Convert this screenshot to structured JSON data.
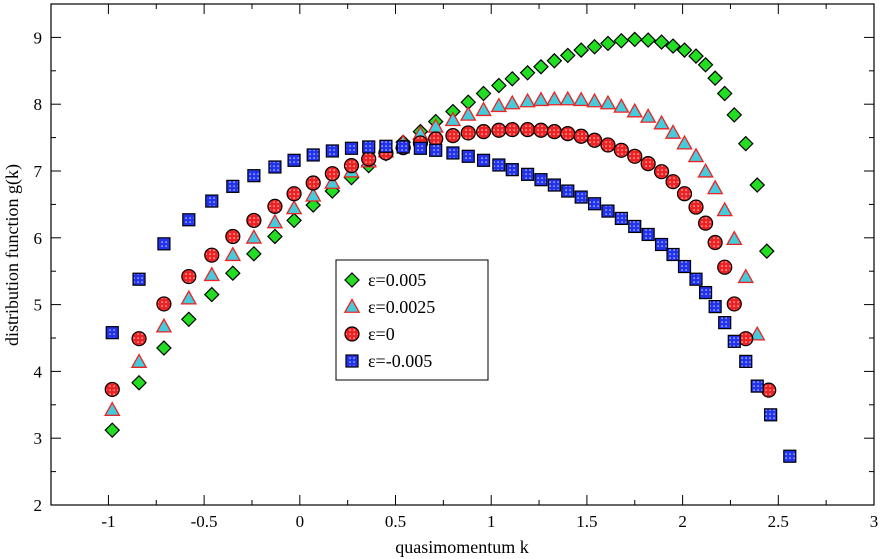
{
  "chart_data": {
    "type": "scatter",
    "title": "",
    "xlabel": "quasimomentum k",
    "ylabel": "distribution function g(k)",
    "xlim": [
      -1.3,
      3.0
    ],
    "ylim": [
      2,
      9.5
    ],
    "xticks": [
      -1,
      -0.5,
      0,
      0.5,
      1,
      1.5,
      2,
      2.5,
      3
    ],
    "xtick_labels": [
      "-1",
      "-0.5",
      "0",
      "0.5",
      "1",
      "1.5",
      "2",
      "2.5",
      "3"
    ],
    "yticks": [
      2,
      3,
      4,
      5,
      6,
      7,
      8,
      9
    ],
    "ytick_labels": [
      "2",
      "3",
      "4",
      "5",
      "6",
      "7",
      "8",
      "9"
    ],
    "grid": false,
    "legend_position": "center",
    "series": [
      {
        "name": "ε=0.005",
        "marker": "diamond",
        "color": "#22dd22",
        "points": [
          [
            -0.98,
            3.12
          ],
          [
            -0.84,
            3.83
          ],
          [
            -0.71,
            4.35
          ],
          [
            -0.58,
            4.78
          ],
          [
            -0.46,
            5.15
          ],
          [
            -0.35,
            5.47
          ],
          [
            -0.24,
            5.76
          ],
          [
            -0.13,
            6.02
          ],
          [
            -0.03,
            6.26
          ],
          [
            0.07,
            6.49
          ],
          [
            0.17,
            6.7
          ],
          [
            0.27,
            6.9
          ],
          [
            0.36,
            7.08
          ],
          [
            0.45,
            7.26
          ],
          [
            0.54,
            7.43
          ],
          [
            0.63,
            7.59
          ],
          [
            0.71,
            7.74
          ],
          [
            0.8,
            7.89
          ],
          [
            0.88,
            8.03
          ],
          [
            0.96,
            8.16
          ],
          [
            1.04,
            8.28
          ],
          [
            1.11,
            8.38
          ],
          [
            1.19,
            8.47
          ],
          [
            1.26,
            8.56
          ],
          [
            1.33,
            8.65
          ],
          [
            1.4,
            8.73
          ],
          [
            1.47,
            8.81
          ],
          [
            1.54,
            8.86
          ],
          [
            1.61,
            8.91
          ],
          [
            1.68,
            8.95
          ],
          [
            1.75,
            8.97
          ],
          [
            1.82,
            8.96
          ],
          [
            1.89,
            8.93
          ],
          [
            1.95,
            8.87
          ],
          [
            2.01,
            8.81
          ],
          [
            2.07,
            8.72
          ],
          [
            2.12,
            8.59
          ],
          [
            2.17,
            8.39
          ],
          [
            2.22,
            8.16
          ],
          [
            2.27,
            7.84
          ],
          [
            2.33,
            7.41
          ],
          [
            2.39,
            6.79
          ],
          [
            2.44,
            5.8
          ]
        ]
      },
      {
        "name": "ε=0.0025",
        "marker": "triangle",
        "color": "#44ccdd",
        "points": [
          [
            -0.98,
            3.42
          ],
          [
            -0.84,
            4.14
          ],
          [
            -0.71,
            4.67
          ],
          [
            -0.58,
            5.09
          ],
          [
            -0.46,
            5.44
          ],
          [
            -0.35,
            5.74
          ],
          [
            -0.24,
            6.0
          ],
          [
            -0.13,
            6.23
          ],
          [
            -0.03,
            6.44
          ],
          [
            0.07,
            6.63
          ],
          [
            0.17,
            6.82
          ],
          [
            0.27,
            6.99
          ],
          [
            0.36,
            7.14
          ],
          [
            0.45,
            7.29
          ],
          [
            0.54,
            7.42
          ],
          [
            0.63,
            7.55
          ],
          [
            0.71,
            7.66
          ],
          [
            0.8,
            7.76
          ],
          [
            0.88,
            7.84
          ],
          [
            0.96,
            7.91
          ],
          [
            1.04,
            7.97
          ],
          [
            1.11,
            8.01
          ],
          [
            1.19,
            8.04
          ],
          [
            1.26,
            8.06
          ],
          [
            1.33,
            8.07
          ],
          [
            1.4,
            8.07
          ],
          [
            1.47,
            8.06
          ],
          [
            1.54,
            8.04
          ],
          [
            1.61,
            8.01
          ],
          [
            1.68,
            7.96
          ],
          [
            1.75,
            7.89
          ],
          [
            1.82,
            7.81
          ],
          [
            1.89,
            7.71
          ],
          [
            1.95,
            7.57
          ],
          [
            2.01,
            7.41
          ],
          [
            2.07,
            7.22
          ],
          [
            2.12,
            6.99
          ],
          [
            2.17,
            6.74
          ],
          [
            2.22,
            6.41
          ],
          [
            2.27,
            5.98
          ],
          [
            2.33,
            5.41
          ],
          [
            2.39,
            4.55
          ]
        ]
      },
      {
        "name": "ε=0",
        "marker": "circle",
        "color": "#ee2222",
        "points": [
          [
            -0.98,
            3.73
          ],
          [
            -0.84,
            4.49
          ],
          [
            -0.71,
            5.01
          ],
          [
            -0.58,
            5.42
          ],
          [
            -0.46,
            5.74
          ],
          [
            -0.35,
            6.02
          ],
          [
            -0.24,
            6.26
          ],
          [
            -0.13,
            6.47
          ],
          [
            -0.03,
            6.66
          ],
          [
            0.07,
            6.82
          ],
          [
            0.17,
            6.96
          ],
          [
            0.27,
            7.08
          ],
          [
            0.36,
            7.18
          ],
          [
            0.45,
            7.27
          ],
          [
            0.54,
            7.35
          ],
          [
            0.63,
            7.42
          ],
          [
            0.71,
            7.48
          ],
          [
            0.8,
            7.53
          ],
          [
            0.88,
            7.57
          ],
          [
            0.96,
            7.59
          ],
          [
            1.04,
            7.61
          ],
          [
            1.11,
            7.62
          ],
          [
            1.19,
            7.62
          ],
          [
            1.26,
            7.61
          ],
          [
            1.33,
            7.59
          ],
          [
            1.4,
            7.56
          ],
          [
            1.47,
            7.52
          ],
          [
            1.54,
            7.46
          ],
          [
            1.61,
            7.39
          ],
          [
            1.68,
            7.31
          ],
          [
            1.75,
            7.22
          ],
          [
            1.82,
            7.11
          ],
          [
            1.89,
            6.99
          ],
          [
            1.95,
            6.84
          ],
          [
            2.01,
            6.66
          ],
          [
            2.07,
            6.46
          ],
          [
            2.12,
            6.22
          ],
          [
            2.17,
            5.93
          ],
          [
            2.22,
            5.56
          ],
          [
            2.27,
            5.01
          ],
          [
            2.33,
            4.49
          ],
          [
            2.45,
            3.72
          ]
        ]
      },
      {
        "name": "ε=-0.005",
        "marker": "square",
        "color": "#2233ee",
        "points": [
          [
            -0.98,
            4.58
          ],
          [
            -0.84,
            5.38
          ],
          [
            -0.71,
            5.91
          ],
          [
            -0.58,
            6.27
          ],
          [
            -0.46,
            6.55
          ],
          [
            -0.35,
            6.77
          ],
          [
            -0.24,
            6.93
          ],
          [
            -0.13,
            7.06
          ],
          [
            -0.03,
            7.16
          ],
          [
            0.07,
            7.24
          ],
          [
            0.17,
            7.3
          ],
          [
            0.27,
            7.34
          ],
          [
            0.36,
            7.36
          ],
          [
            0.45,
            7.37
          ],
          [
            0.54,
            7.36
          ],
          [
            0.63,
            7.34
          ],
          [
            0.71,
            7.31
          ],
          [
            0.8,
            7.27
          ],
          [
            0.88,
            7.22
          ],
          [
            0.96,
            7.16
          ],
          [
            1.04,
            7.09
          ],
          [
            1.11,
            7.02
          ],
          [
            1.19,
            6.95
          ],
          [
            1.26,
            6.87
          ],
          [
            1.33,
            6.79
          ],
          [
            1.4,
            6.7
          ],
          [
            1.47,
            6.61
          ],
          [
            1.54,
            6.51
          ],
          [
            1.61,
            6.4
          ],
          [
            1.68,
            6.29
          ],
          [
            1.75,
            6.17
          ],
          [
            1.82,
            6.05
          ],
          [
            1.89,
            5.9
          ],
          [
            1.95,
            5.75
          ],
          [
            2.01,
            5.57
          ],
          [
            2.07,
            5.38
          ],
          [
            2.12,
            5.18
          ],
          [
            2.17,
            4.97
          ],
          [
            2.22,
            4.73
          ],
          [
            2.27,
            4.45
          ],
          [
            2.33,
            4.15
          ],
          [
            2.39,
            3.78
          ],
          [
            2.46,
            3.35
          ],
          [
            2.56,
            2.73
          ]
        ]
      }
    ]
  }
}
